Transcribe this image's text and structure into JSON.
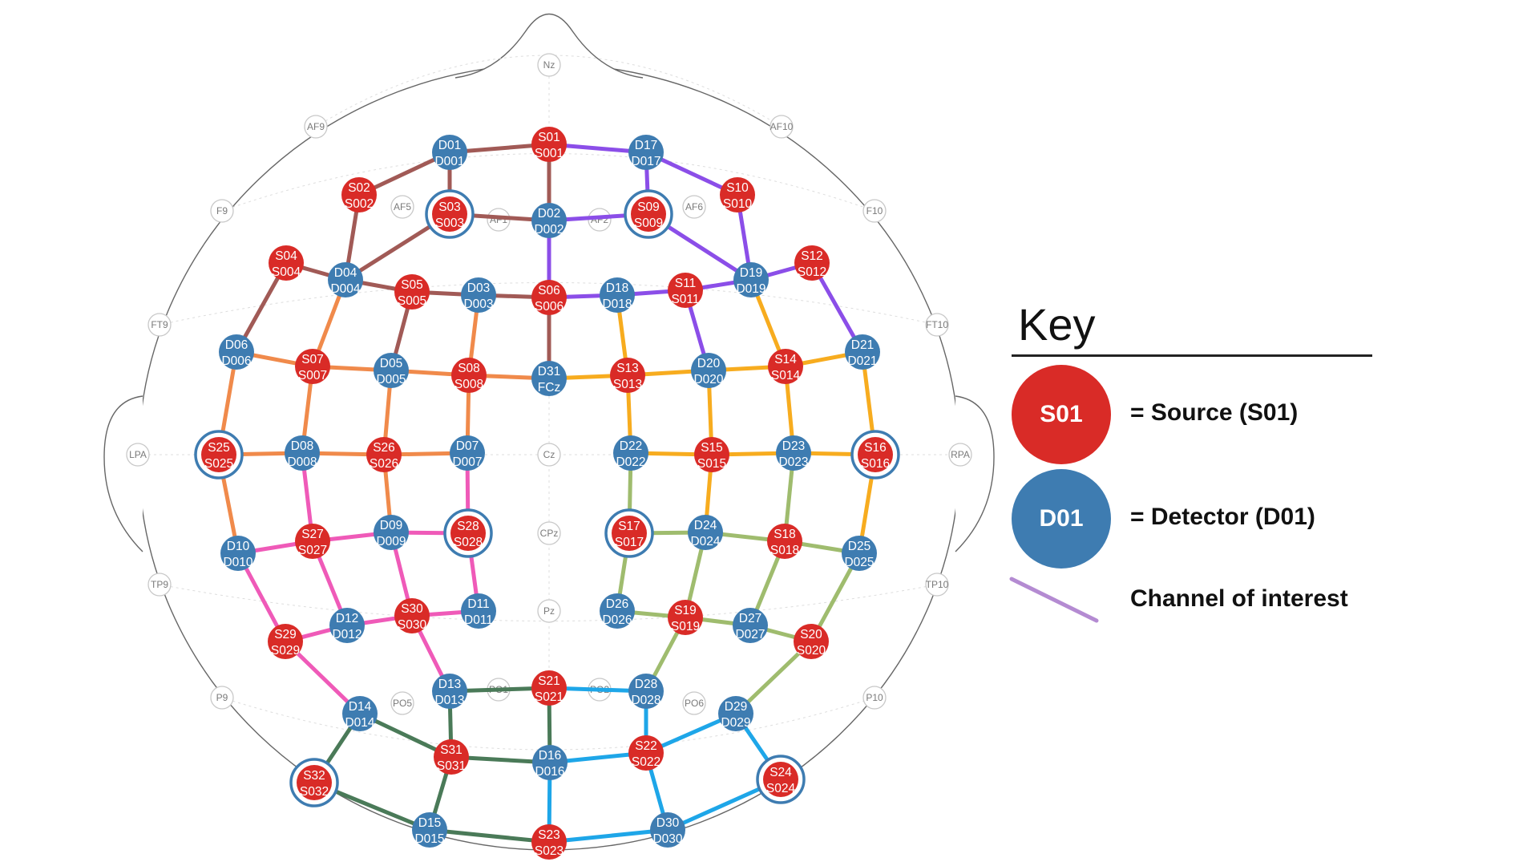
{
  "colors": {
    "source": "#d92b27",
    "detector": "#3e7cb1",
    "brown": "#a15a56",
    "purple": "#8b4ee8",
    "orange": "#f08a4b",
    "gold": "#f7ac1f",
    "pink": "#ef5ab8",
    "olive": "#9fbc6e",
    "darkgreen": "#4a7a58",
    "cyan": "#1ea6e8",
    "key_channel": "#b48bd2"
  },
  "landmarks": [
    {
      "id": "Nz",
      "label": "Nz"
    },
    {
      "id": "AF9",
      "label": "AF9"
    },
    {
      "id": "AF10",
      "label": "AF10"
    },
    {
      "id": "F9",
      "label": "F9"
    },
    {
      "id": "F10",
      "label": "F10"
    },
    {
      "id": "AF5",
      "label": "AF5"
    },
    {
      "id": "AF6",
      "label": "AF6"
    },
    {
      "id": "AF1",
      "label": "AF1"
    },
    {
      "id": "AF2",
      "label": "AF2"
    },
    {
      "id": "FT9",
      "label": "FT9"
    },
    {
      "id": "FT10",
      "label": "FT10"
    },
    {
      "id": "LPA",
      "label": "LPA"
    },
    {
      "id": "RPA",
      "label": "RPA"
    },
    {
      "id": "Cz",
      "label": "Cz"
    },
    {
      "id": "CPz",
      "label": "CPz"
    },
    {
      "id": "Pz",
      "label": "Pz"
    },
    {
      "id": "TP9",
      "label": "TP9"
    },
    {
      "id": "TP10",
      "label": "TP10"
    },
    {
      "id": "P9",
      "label": "P9"
    },
    {
      "id": "P10",
      "label": "P10"
    },
    {
      "id": "PO5",
      "label": "PO5"
    },
    {
      "id": "PO6",
      "label": "PO6"
    },
    {
      "id": "PO1",
      "label": "PO1"
    },
    {
      "id": "PO2",
      "label": "PO2"
    }
  ],
  "optodes": [
    {
      "id": "S01",
      "type": "source",
      "top": "S01",
      "bottom": "S001",
      "ring": false
    },
    {
      "id": "S02",
      "type": "source",
      "top": "S02",
      "bottom": "S002",
      "ring": false
    },
    {
      "id": "S03",
      "type": "source",
      "top": "S03",
      "bottom": "S003",
      "ring": true
    },
    {
      "id": "S04",
      "type": "source",
      "top": "S04",
      "bottom": "S004",
      "ring": false
    },
    {
      "id": "S05",
      "type": "source",
      "top": "S05",
      "bottom": "S005",
      "ring": false
    },
    {
      "id": "S06",
      "type": "source",
      "top": "S06",
      "bottom": "S006",
      "ring": false
    },
    {
      "id": "S07",
      "type": "source",
      "top": "S07",
      "bottom": "S007",
      "ring": false
    },
    {
      "id": "S08",
      "type": "source",
      "top": "S08",
      "bottom": "S008",
      "ring": false
    },
    {
      "id": "S09",
      "type": "source",
      "top": "S09",
      "bottom": "S009",
      "ring": true
    },
    {
      "id": "S10",
      "type": "source",
      "top": "S10",
      "bottom": "S010",
      "ring": false
    },
    {
      "id": "S11",
      "type": "source",
      "top": "S11",
      "bottom": "S011",
      "ring": false
    },
    {
      "id": "S12",
      "type": "source",
      "top": "S12",
      "bottom": "S012",
      "ring": false
    },
    {
      "id": "S13",
      "type": "source",
      "top": "S13",
      "bottom": "S013",
      "ring": false
    },
    {
      "id": "S14",
      "type": "source",
      "top": "S14",
      "bottom": "S014",
      "ring": false
    },
    {
      "id": "S15",
      "type": "source",
      "top": "S15",
      "bottom": "S015",
      "ring": false
    },
    {
      "id": "S16",
      "type": "source",
      "top": "S16",
      "bottom": "S016",
      "ring": true
    },
    {
      "id": "S17",
      "type": "source",
      "top": "S17",
      "bottom": "S017",
      "ring": true
    },
    {
      "id": "S18",
      "type": "source",
      "top": "S18",
      "bottom": "S018",
      "ring": false
    },
    {
      "id": "S19",
      "type": "source",
      "top": "S19",
      "bottom": "S019",
      "ring": false
    },
    {
      "id": "S20",
      "type": "source",
      "top": "S20",
      "bottom": "S020",
      "ring": false
    },
    {
      "id": "S21",
      "type": "source",
      "top": "S21",
      "bottom": "S021",
      "ring": false
    },
    {
      "id": "S22",
      "type": "source",
      "top": "S22",
      "bottom": "S022",
      "ring": false
    },
    {
      "id": "S23",
      "type": "source",
      "top": "S23",
      "bottom": "S023",
      "ring": false
    },
    {
      "id": "S24",
      "type": "source",
      "top": "S24",
      "bottom": "S024",
      "ring": true
    },
    {
      "id": "S25",
      "type": "source",
      "top": "S25",
      "bottom": "S025",
      "ring": true
    },
    {
      "id": "S26",
      "type": "source",
      "top": "S26",
      "bottom": "S026",
      "ring": false
    },
    {
      "id": "S27",
      "type": "source",
      "top": "S27",
      "bottom": "S027",
      "ring": false
    },
    {
      "id": "S28",
      "type": "source",
      "top": "S28",
      "bottom": "S028",
      "ring": true
    },
    {
      "id": "S29",
      "type": "source",
      "top": "S29",
      "bottom": "S029",
      "ring": false
    },
    {
      "id": "S30",
      "type": "source",
      "top": "S30",
      "bottom": "S030",
      "ring": false
    },
    {
      "id": "S31",
      "type": "source",
      "top": "S31",
      "bottom": "S031",
      "ring": false
    },
    {
      "id": "S32",
      "type": "source",
      "top": "S32",
      "bottom": "S032",
      "ring": true
    },
    {
      "id": "D01",
      "type": "detector",
      "top": "D01",
      "bottom": "D001",
      "ring": false
    },
    {
      "id": "D02",
      "type": "detector",
      "top": "D02",
      "bottom": "D002",
      "ring": false
    },
    {
      "id": "D03",
      "type": "detector",
      "top": "D03",
      "bottom": "D003",
      "ring": false
    },
    {
      "id": "D04",
      "type": "detector",
      "top": "D04",
      "bottom": "D004",
      "ring": false
    },
    {
      "id": "D05",
      "type": "detector",
      "top": "D05",
      "bottom": "D005",
      "ring": false
    },
    {
      "id": "D06",
      "type": "detector",
      "top": "D06",
      "bottom": "D006",
      "ring": false
    },
    {
      "id": "D07",
      "type": "detector",
      "top": "D07",
      "bottom": "D007",
      "ring": false
    },
    {
      "id": "D08",
      "type": "detector",
      "top": "D08",
      "bottom": "D008",
      "ring": false
    },
    {
      "id": "D09",
      "type": "detector",
      "top": "D09",
      "bottom": "D009",
      "ring": false
    },
    {
      "id": "D10",
      "type": "detector",
      "top": "D10",
      "bottom": "D010",
      "ring": false
    },
    {
      "id": "D11",
      "type": "detector",
      "top": "D11",
      "bottom": "D011",
      "ring": false
    },
    {
      "id": "D12",
      "type": "detector",
      "top": "D12",
      "bottom": "D012",
      "ring": false
    },
    {
      "id": "D13",
      "type": "detector",
      "top": "D13",
      "bottom": "D013",
      "ring": false
    },
    {
      "id": "D14",
      "type": "detector",
      "top": "D14",
      "bottom": "D014",
      "ring": false
    },
    {
      "id": "D15",
      "type": "detector",
      "top": "D15",
      "bottom": "D015",
      "ring": false
    },
    {
      "id": "D16",
      "type": "detector",
      "top": "D16",
      "bottom": "D016",
      "ring": false
    },
    {
      "id": "D17",
      "type": "detector",
      "top": "D17",
      "bottom": "D017",
      "ring": false
    },
    {
      "id": "D18",
      "type": "detector",
      "top": "D18",
      "bottom": "D018",
      "ring": false
    },
    {
      "id": "D19",
      "type": "detector",
      "top": "D19",
      "bottom": "D019",
      "ring": false
    },
    {
      "id": "D20",
      "type": "detector",
      "top": "D20",
      "bottom": "D020",
      "ring": false
    },
    {
      "id": "D21",
      "type": "detector",
      "top": "D21",
      "bottom": "D021",
      "ring": false
    },
    {
      "id": "D22",
      "type": "detector",
      "top": "D22",
      "bottom": "D022",
      "ring": false
    },
    {
      "id": "D23",
      "type": "detector",
      "top": "D23",
      "bottom": "D023",
      "ring": false
    },
    {
      "id": "D24",
      "type": "detector",
      "top": "D24",
      "bottom": "D024",
      "ring": false
    },
    {
      "id": "D25",
      "type": "detector",
      "top": "D25",
      "bottom": "D025",
      "ring": false
    },
    {
      "id": "D26",
      "type": "detector",
      "top": "D26",
      "bottom": "D026",
      "ring": false
    },
    {
      "id": "D27",
      "type": "detector",
      "top": "D27",
      "bottom": "D027",
      "ring": false
    },
    {
      "id": "D28",
      "type": "detector",
      "top": "D28",
      "bottom": "D028",
      "ring": false
    },
    {
      "id": "D29",
      "type": "detector",
      "top": "D29",
      "bottom": "D029",
      "ring": false
    },
    {
      "id": "D30",
      "type": "detector",
      "top": "D30",
      "bottom": "D030",
      "ring": false
    },
    {
      "id": "D31",
      "type": "detector",
      "top": "D31",
      "bottom": "FCz",
      "ring": false
    }
  ],
  "channels": [
    {
      "from": "S01",
      "to": "D01",
      "color": "brown"
    },
    {
      "from": "S01",
      "to": "D02",
      "color": "brown"
    },
    {
      "from": "S02",
      "to": "D01",
      "color": "brown"
    },
    {
      "from": "S02",
      "to": "D04",
      "color": "brown"
    },
    {
      "from": "S03",
      "to": "D01",
      "color": "brown"
    },
    {
      "from": "S03",
      "to": "D02",
      "color": "brown"
    },
    {
      "from": "S03",
      "to": "D04",
      "color": "brown"
    },
    {
      "from": "S04",
      "to": "D04",
      "color": "brown"
    },
    {
      "from": "S04",
      "to": "D06",
      "color": "brown"
    },
    {
      "from": "S05",
      "to": "D04",
      "color": "brown"
    },
    {
      "from": "S05",
      "to": "D03",
      "color": "brown"
    },
    {
      "from": "S05",
      "to": "D05",
      "color": "brown"
    },
    {
      "from": "S06",
      "to": "D03",
      "color": "brown"
    },
    {
      "from": "S06",
      "to": "D31",
      "color": "brown"
    },
    {
      "from": "S01",
      "to": "D17",
      "color": "purple"
    },
    {
      "from": "S06",
      "to": "D02",
      "color": "purple"
    },
    {
      "from": "S09",
      "to": "D02",
      "color": "purple"
    },
    {
      "from": "S09",
      "to": "D17",
      "color": "purple"
    },
    {
      "from": "S09",
      "to": "D19",
      "color": "purple"
    },
    {
      "from": "S10",
      "to": "D17",
      "color": "purple"
    },
    {
      "from": "S10",
      "to": "D19",
      "color": "purple"
    },
    {
      "from": "S06",
      "to": "D18",
      "color": "purple"
    },
    {
      "from": "S11",
      "to": "D18",
      "color": "purple"
    },
    {
      "from": "S11",
      "to": "D19",
      "color": "purple"
    },
    {
      "from": "S11",
      "to": "D20",
      "color": "purple"
    },
    {
      "from": "S12",
      "to": "D19",
      "color": "purple"
    },
    {
      "from": "S12",
      "to": "D21",
      "color": "purple"
    },
    {
      "from": "S07",
      "to": "D04",
      "color": "orange"
    },
    {
      "from": "S07",
      "to": "D06",
      "color": "orange"
    },
    {
      "from": "S07",
      "to": "D05",
      "color": "orange"
    },
    {
      "from": "S07",
      "to": "D08",
      "color": "orange"
    },
    {
      "from": "S08",
      "to": "D05",
      "color": "orange"
    },
    {
      "from": "S08",
      "to": "D03",
      "color": "orange"
    },
    {
      "from": "S08",
      "to": "D31",
      "color": "orange"
    },
    {
      "from": "S08",
      "to": "D07",
      "color": "orange"
    },
    {
      "from": "S25",
      "to": "D06",
      "color": "orange"
    },
    {
      "from": "S25",
      "to": "D08",
      "color": "orange"
    },
    {
      "from": "S25",
      "to": "D10",
      "color": "orange"
    },
    {
      "from": "S26",
      "to": "D08",
      "color": "orange"
    },
    {
      "from": "S26",
      "to": "D05",
      "color": "orange"
    },
    {
      "from": "S26",
      "to": "D07",
      "color": "orange"
    },
    {
      "from": "S26",
      "to": "D09",
      "color": "orange"
    },
    {
      "from": "S13",
      "to": "D31",
      "color": "gold"
    },
    {
      "from": "S13",
      "to": "D18",
      "color": "gold"
    },
    {
      "from": "S13",
      "to": "D20",
      "color": "gold"
    },
    {
      "from": "S13",
      "to": "D22",
      "color": "gold"
    },
    {
      "from": "S14",
      "to": "D20",
      "color": "gold"
    },
    {
      "from": "S14",
      "to": "D19",
      "color": "gold"
    },
    {
      "from": "S14",
      "to": "D21",
      "color": "gold"
    },
    {
      "from": "S14",
      "to": "D23",
      "color": "gold"
    },
    {
      "from": "S15",
      "to": "D22",
      "color": "gold"
    },
    {
      "from": "S15",
      "to": "D20",
      "color": "gold"
    },
    {
      "from": "S15",
      "to": "D23",
      "color": "gold"
    },
    {
      "from": "S15",
      "to": "D24",
      "color": "gold"
    },
    {
      "from": "S16",
      "to": "D23",
      "color": "gold"
    },
    {
      "from": "S16",
      "to": "D21",
      "color": "gold"
    },
    {
      "from": "S16",
      "to": "D25",
      "color": "gold"
    },
    {
      "from": "S27",
      "to": "D08",
      "color": "pink"
    },
    {
      "from": "S27",
      "to": "D10",
      "color": "pink"
    },
    {
      "from": "S27",
      "to": "D09",
      "color": "pink"
    },
    {
      "from": "S27",
      "to": "D12",
      "color": "pink"
    },
    {
      "from": "S28",
      "to": "D09",
      "color": "pink"
    },
    {
      "from": "S28",
      "to": "D07",
      "color": "pink"
    },
    {
      "from": "S28",
      "to": "D11",
      "color": "pink"
    },
    {
      "from": "S29",
      "to": "D10",
      "color": "pink"
    },
    {
      "from": "S29",
      "to": "D12",
      "color": "pink"
    },
    {
      "from": "S29",
      "to": "D14",
      "color": "pink"
    },
    {
      "from": "S30",
      "to": "D12",
      "color": "pink"
    },
    {
      "from": "S30",
      "to": "D09",
      "color": "pink"
    },
    {
      "from": "S30",
      "to": "D11",
      "color": "pink"
    },
    {
      "from": "S30",
      "to": "D13",
      "color": "pink"
    },
    {
      "from": "S17",
      "to": "D22",
      "color": "olive"
    },
    {
      "from": "S17",
      "to": "D24",
      "color": "olive"
    },
    {
      "from": "S17",
      "to": "D26",
      "color": "olive"
    },
    {
      "from": "S18",
      "to": "D24",
      "color": "olive"
    },
    {
      "from": "S18",
      "to": "D23",
      "color": "olive"
    },
    {
      "from": "S18",
      "to": "D25",
      "color": "olive"
    },
    {
      "from": "S18",
      "to": "D27",
      "color": "olive"
    },
    {
      "from": "S19",
      "to": "D26",
      "color": "olive"
    },
    {
      "from": "S19",
      "to": "D24",
      "color": "olive"
    },
    {
      "from": "S19",
      "to": "D27",
      "color": "olive"
    },
    {
      "from": "S19",
      "to": "D28",
      "color": "olive"
    },
    {
      "from": "S20",
      "to": "D27",
      "color": "olive"
    },
    {
      "from": "S20",
      "to": "D25",
      "color": "olive"
    },
    {
      "from": "S20",
      "to": "D29",
      "color": "olive"
    },
    {
      "from": "S21",
      "to": "D13",
      "color": "darkgreen"
    },
    {
      "from": "S21",
      "to": "D16",
      "color": "darkgreen"
    },
    {
      "from": "S31",
      "to": "D13",
      "color": "darkgreen"
    },
    {
      "from": "S31",
      "to": "D14",
      "color": "darkgreen"
    },
    {
      "from": "S31",
      "to": "D16",
      "color": "darkgreen"
    },
    {
      "from": "S31",
      "to": "D15",
      "color": "darkgreen"
    },
    {
      "from": "S32",
      "to": "D14",
      "color": "darkgreen"
    },
    {
      "from": "S32",
      "to": "D15",
      "color": "darkgreen"
    },
    {
      "from": "S23",
      "to": "D15",
      "color": "darkgreen"
    },
    {
      "from": "S21",
      "to": "D28",
      "color": "cyan"
    },
    {
      "from": "S22",
      "to": "D16",
      "color": "cyan"
    },
    {
      "from": "S22",
      "to": "D28",
      "color": "cyan"
    },
    {
      "from": "S22",
      "to": "D29",
      "color": "cyan"
    },
    {
      "from": "S22",
      "to": "D30",
      "color": "cyan"
    },
    {
      "from": "S24",
      "to": "D29",
      "color": "cyan"
    },
    {
      "from": "S24",
      "to": "D30",
      "color": "cyan"
    },
    {
      "from": "S23",
      "to": "D30",
      "color": "cyan"
    },
    {
      "from": "S23",
      "to": "D16",
      "color": "cyan"
    }
  ],
  "key": {
    "title": "Key",
    "source_badge": "S01",
    "source_text": "= Source (S01)",
    "detector_badge": "D01",
    "detector_text": "= Detector (D01)",
    "channel_text": "Channel of interest"
  }
}
